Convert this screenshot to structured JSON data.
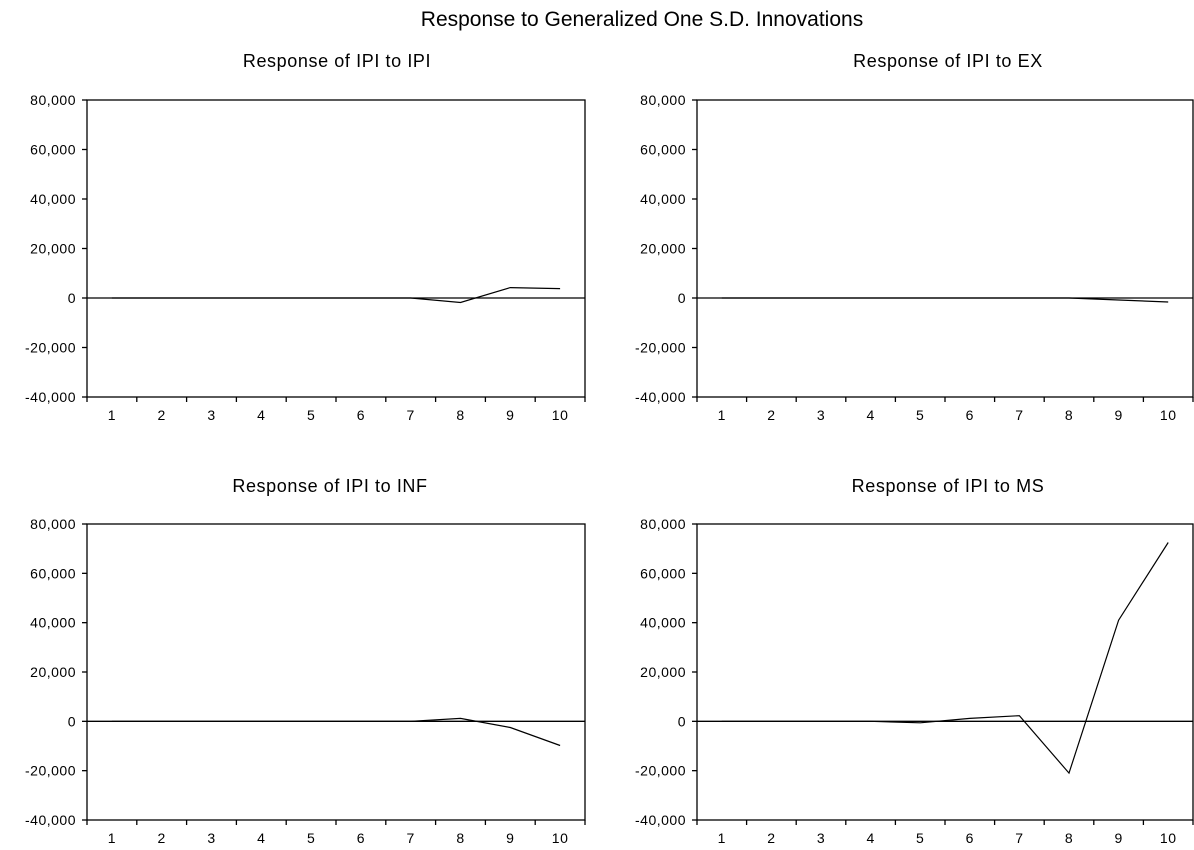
{
  "figure_title": "Response to Generalized One S.D. Innovations",
  "chart_data": [
    {
      "type": "line",
      "title": "Response of IPI to IPI",
      "x": [
        1,
        2,
        3,
        4,
        5,
        6,
        7,
        8,
        9,
        10
      ],
      "series": [
        {
          "values": [
            0,
            0,
            0,
            0,
            0,
            0,
            0,
            -1800,
            4200,
            3800
          ]
        }
      ],
      "ylim": [
        -40000,
        80000
      ],
      "yticks": [
        80000,
        60000,
        40000,
        20000,
        0,
        -20000,
        -40000
      ],
      "ytick_labels": [
        "80,000",
        "60,000",
        "40,000",
        "20,000",
        "0",
        "-20,000",
        "-40,000"
      ],
      "xtick_labels": [
        "1",
        "2",
        "3",
        "4",
        "5",
        "6",
        "7",
        "8",
        "9",
        "10"
      ],
      "grid": false
    },
    {
      "type": "line",
      "title": "Response of IPI to EX",
      "x": [
        1,
        2,
        3,
        4,
        5,
        6,
        7,
        8,
        9,
        10
      ],
      "series": [
        {
          "values": [
            0,
            0,
            0,
            0,
            0,
            0,
            0,
            0,
            -800,
            -1600
          ]
        }
      ],
      "ylim": [
        -40000,
        80000
      ],
      "yticks": [
        80000,
        60000,
        40000,
        20000,
        0,
        -20000,
        -40000
      ],
      "ytick_labels": [
        "80,000",
        "60,000",
        "40,000",
        "20,000",
        "0",
        "-20,000",
        "-40,000"
      ],
      "xtick_labels": [
        "1",
        "2",
        "3",
        "4",
        "5",
        "6",
        "7",
        "8",
        "9",
        "10"
      ],
      "grid": false
    },
    {
      "type": "line",
      "title": "Response of IPI to INF",
      "x": [
        1,
        2,
        3,
        4,
        5,
        6,
        7,
        8,
        9,
        10
      ],
      "series": [
        {
          "values": [
            0,
            0,
            0,
            0,
            0,
            0,
            0,
            1200,
            -2500,
            -9800
          ]
        }
      ],
      "ylim": [
        -40000,
        80000
      ],
      "yticks": [
        80000,
        60000,
        40000,
        20000,
        0,
        -20000,
        -40000
      ],
      "ytick_labels": [
        "80,000",
        "60,000",
        "40,000",
        "20,000",
        "0",
        "-20,000",
        "-40,000"
      ],
      "xtick_labels": [
        "1",
        "2",
        "3",
        "4",
        "5",
        "6",
        "7",
        "8",
        "9",
        "10"
      ],
      "grid": false
    },
    {
      "type": "line",
      "title": "Response of IPI to MS",
      "x": [
        1,
        2,
        3,
        4,
        5,
        6,
        7,
        8,
        9,
        10
      ],
      "series": [
        {
          "values": [
            0,
            0,
            0,
            0,
            -600,
            1200,
            2300,
            -21000,
            41000,
            72500
          ]
        }
      ],
      "ylim": [
        -40000,
        80000
      ],
      "yticks": [
        80000,
        60000,
        40000,
        20000,
        0,
        -20000,
        -40000
      ],
      "ytick_labels": [
        "80,000",
        "60,000",
        "40,000",
        "20,000",
        "0",
        "-20,000",
        "-40,000"
      ],
      "xtick_labels": [
        "1",
        "2",
        "3",
        "4",
        "5",
        "6",
        "7",
        "8",
        "9",
        "10"
      ],
      "grid": false
    }
  ]
}
